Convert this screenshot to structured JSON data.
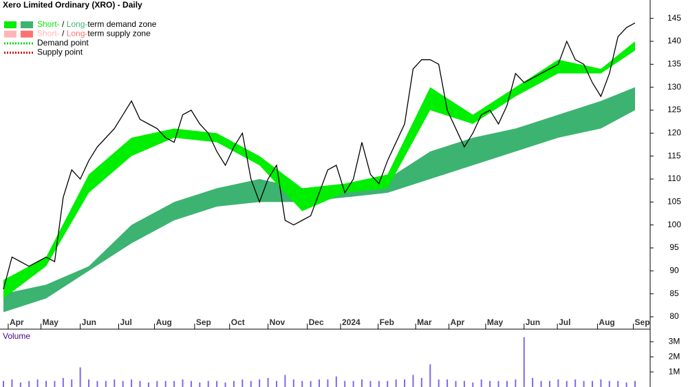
{
  "chart_data": {
    "type": "stock",
    "title": "Xero Limited Ordinary (XRO) - Daily",
    "legend": [
      {
        "swatches": [
          "#00ee00",
          "#3cb371"
        ],
        "parts": [
          {
            "text": "Short-",
            "color": "#00ee00"
          },
          {
            "text": " / ",
            "color": "#000000"
          },
          {
            "text": "Long-",
            "color": "#3cb371"
          },
          {
            "text": "term demand zone",
            "color": "#000000"
          }
        ]
      },
      {
        "swatches": [
          "#ffb6b6",
          "#ff7070"
        ],
        "parts": [
          {
            "text": "Short-",
            "color": "#ffb6b6"
          },
          {
            "text": " / ",
            "color": "#000000"
          },
          {
            "text": "Long-",
            "color": "#ff7070"
          },
          {
            "text": "term supply zone",
            "color": "#000000"
          }
        ]
      },
      {
        "dotted": "#00dd00",
        "parts": [
          {
            "text": "Demand point",
            "color": "#000000"
          }
        ]
      },
      {
        "dotted": "#dd0000",
        "parts": [
          {
            "text": "Supply point",
            "color": "#000000"
          }
        ]
      }
    ],
    "xlim": [
      0,
      74
    ],
    "xticks": [
      {
        "value": 0.56,
        "label": "Apr"
      },
      {
        "value": 4.4,
        "label": "May"
      },
      {
        "value": 9.0,
        "label": "Jun"
      },
      {
        "value": 13.5,
        "label": "Jul"
      },
      {
        "value": 17.7,
        "label": "Aug"
      },
      {
        "value": 22.4,
        "label": "Sep"
      },
      {
        "value": 26.5,
        "label": "Oct"
      },
      {
        "value": 31.0,
        "label": "Nov"
      },
      {
        "value": 35.6,
        "label": "Dec"
      },
      {
        "value": 39.5,
        "label": "2024"
      },
      {
        "value": 43.9,
        "label": "Feb"
      },
      {
        "value": 48.3,
        "label": "Mar"
      },
      {
        "value": 52.2,
        "label": "Apr"
      },
      {
        "value": 56.5,
        "label": "May"
      },
      {
        "value": 61.0,
        "label": "Jun"
      },
      {
        "value": 64.9,
        "label": "Jul"
      },
      {
        "value": 69.6,
        "label": "Aug"
      },
      {
        "value": 73.8,
        "label": "Sep"
      }
    ],
    "ylim": [
      78.5,
      149
    ],
    "yticks": [
      80,
      85,
      90,
      95,
      100,
      105,
      110,
      115,
      120,
      125,
      130,
      135,
      140,
      145
    ],
    "price": {
      "color": "#000000",
      "values": [
        86,
        93,
        92,
        91,
        92,
        93,
        92,
        106,
        112,
        110,
        114,
        117,
        119,
        121,
        124,
        127,
        123,
        122,
        121,
        119,
        118,
        124,
        125,
        122,
        120,
        116,
        113,
        117,
        120,
        110,
        105,
        110,
        113,
        101,
        100,
        101,
        102,
        107,
        112,
        113,
        107,
        110,
        118,
        111,
        109,
        114,
        118,
        122,
        134,
        136,
        136,
        135,
        125,
        121,
        117,
        120,
        124,
        125,
        122,
        126,
        133,
        131,
        132,
        133,
        134,
        135,
        140,
        136,
        135,
        131,
        128,
        133,
        141,
        143,
        144
      ]
    },
    "bands": [
      {
        "color": "#3cb371",
        "x": [
          0,
          5,
          10,
          15,
          20,
          25,
          30,
          35,
          40,
          45,
          50,
          55,
          60,
          65,
          70,
          74
        ],
        "upper": [
          85,
          87,
          91,
          100,
          105,
          108,
          110,
          108,
          108,
          110,
          116,
          119,
          121,
          124,
          127,
          130
        ],
        "lower": [
          81,
          84,
          90,
          96,
          101,
          104,
          105,
          105,
          106,
          107,
          110,
          113,
          116,
          119,
          121,
          125
        ]
      },
      {
        "color": "#00ee00",
        "x": [
          0,
          5,
          10,
          15,
          20,
          25,
          30,
          35,
          40,
          45,
          50,
          55,
          60,
          65,
          70,
          74
        ],
        "upper": [
          88,
          93,
          111,
          119,
          121,
          120,
          115,
          108,
          109,
          111,
          130,
          124,
          130,
          136,
          134,
          140
        ],
        "lower": [
          84,
          91,
          107,
          115,
          119,
          118,
          113,
          103,
          107,
          108,
          125,
          122,
          128,
          133,
          133,
          138
        ]
      }
    ],
    "volume": {
      "title": "Volume",
      "color": "#7b68ee",
      "ylim": [
        0,
        3.65
      ],
      "yticks": [
        {
          "value": 1,
          "label": "1M"
        },
        {
          "value": 2,
          "label": "2M"
        },
        {
          "value": 3,
          "label": "3M"
        }
      ],
      "values": [
        0.4,
        0.5,
        0.3,
        0.4,
        0.5,
        0.4,
        0.4,
        0.6,
        0.5,
        1.3,
        0.5,
        0.4,
        0.4,
        0.5,
        0.4,
        0.5,
        0.4,
        0.3,
        0.4,
        0.4,
        0.4,
        0.5,
        0.4,
        0.3,
        0.4,
        0.4,
        0.3,
        0.4,
        0.5,
        0.4,
        0.5,
        0.6,
        0.4,
        0.8,
        0.5,
        0.4,
        0.4,
        0.5,
        0.5,
        0.7,
        0.4,
        0.4,
        0.5,
        0.4,
        0.4,
        0.4,
        0.5,
        0.5,
        0.8,
        0.6,
        1.5,
        0.5,
        0.5,
        0.4,
        0.4,
        0.3,
        0.5,
        0.4,
        0.4,
        0.4,
        0.5,
        3.3,
        0.6,
        0.4,
        0.4,
        0.5,
        0.4,
        0.5,
        0.4,
        0.4,
        0.5,
        0.4,
        0.4,
        0.3,
        0.4
      ]
    }
  }
}
